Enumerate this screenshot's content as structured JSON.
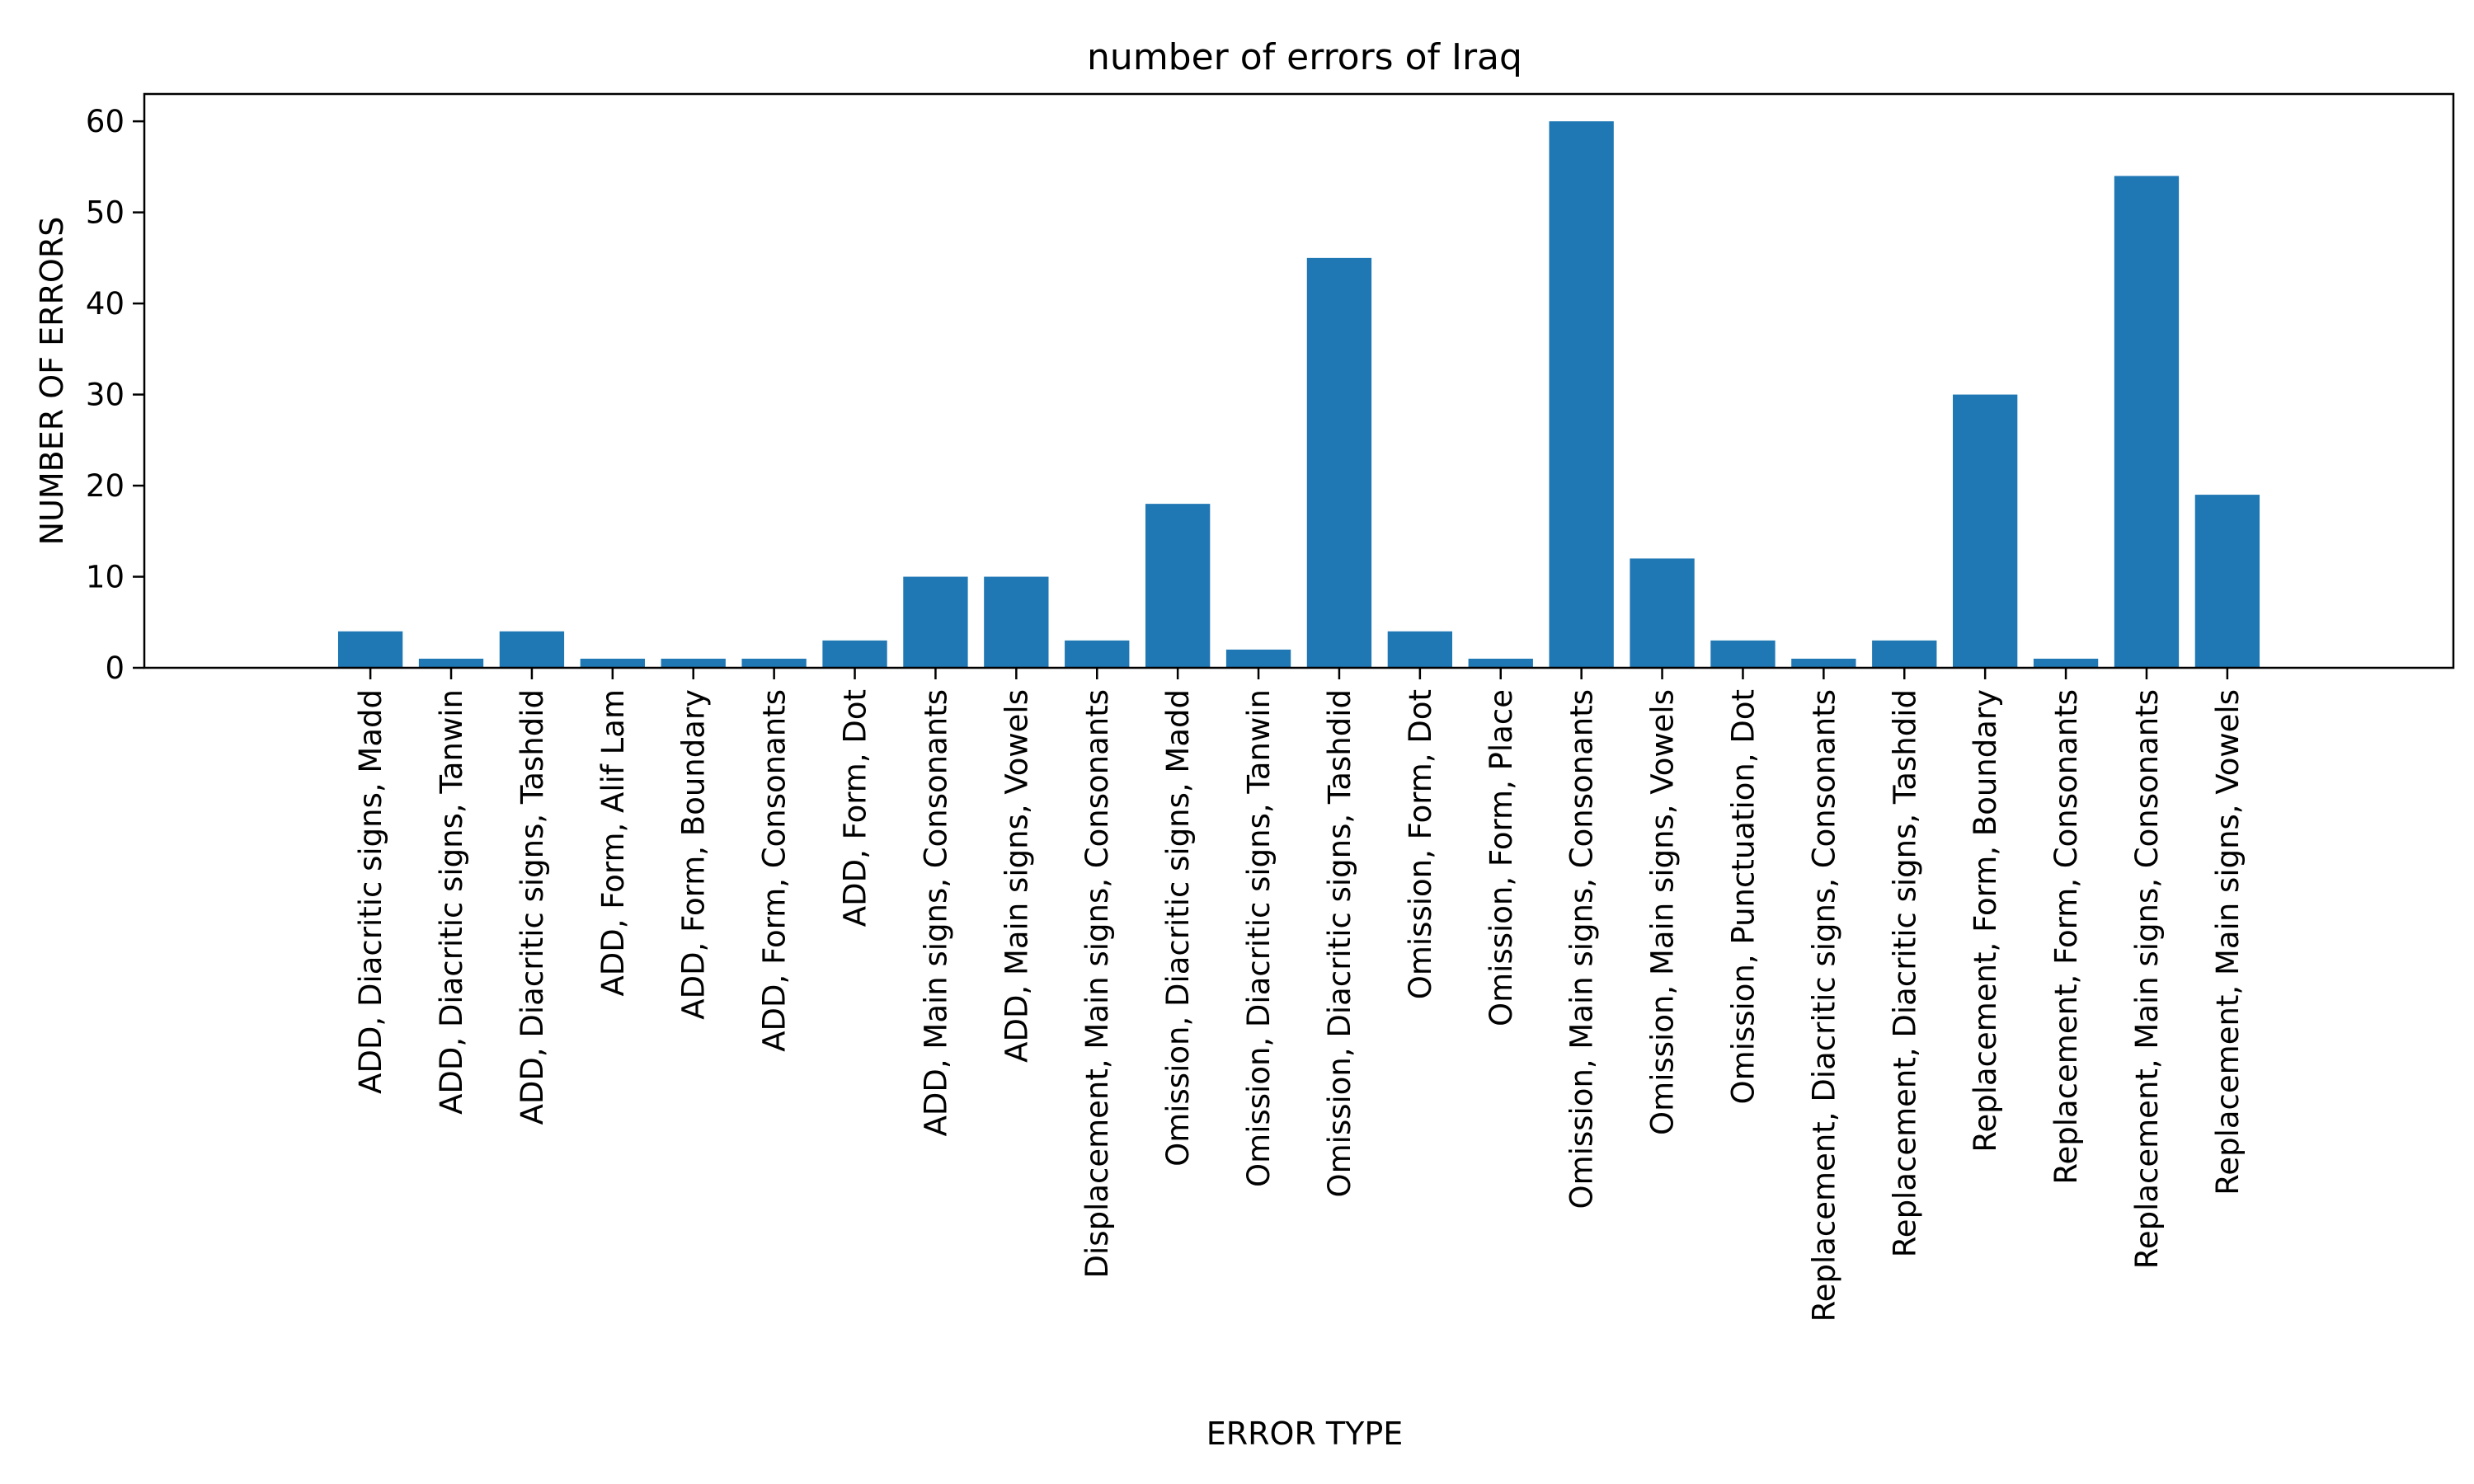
{
  "chart_data": {
    "type": "bar",
    "title": "number of errors of Iraq",
    "xlabel": "ERROR TYPE",
    "ylabel": "NUMBER OF ERRORS",
    "ylim": [
      0,
      63
    ],
    "yticks": [
      0,
      10,
      20,
      30,
      40,
      50,
      60
    ],
    "grid": false,
    "bar_color": "#1f77b4",
    "categories": [
      "ADD, Diacritic signs, Madd",
      "ADD, Diacritic signs, Tanwin",
      "ADD, Diacritic signs, Tashdid",
      "ADD, Form, Alif Lam",
      "ADD, Form, Boundary",
      "ADD, Form, Consonants",
      "ADD, Form, Dot",
      "ADD, Main signs, Consonants",
      "ADD, Main signs, Vowels",
      "Displacement, Main signs, Consonants",
      "Omission, Diacritic signs, Madd",
      "Omission, Diacritic signs, Tanwin",
      "Omission, Diacritic signs, Tashdid",
      "Omission, Form, Dot",
      "Omission, Form, Place",
      "Omission, Main signs, Consonants",
      "Omission, Main signs, Vowels",
      "Omission, Punctuation, Dot",
      "Replacement, Diacritic signs, Consonants",
      "Replacement, Diacritic signs, Tashdid",
      "Replacement, Form, Boundary",
      "Replacement, Form, Consonants",
      "Replacement, Main signs, Consonants",
      "Replacement, Main signs, Vowels"
    ],
    "values": [
      4,
      1,
      4,
      1,
      1,
      1,
      3,
      10,
      10,
      3,
      18,
      2,
      45,
      4,
      1,
      60,
      12,
      3,
      1,
      3,
      30,
      1,
      54,
      19
    ]
  }
}
